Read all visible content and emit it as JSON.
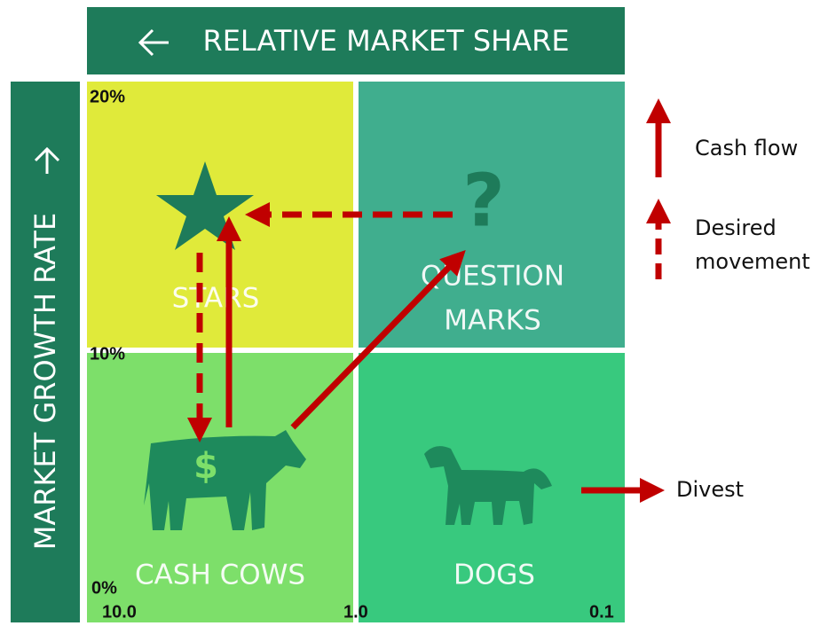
{
  "header": {
    "title": "RELATIVE MARKET SHARE"
  },
  "side": {
    "title": "MARKET GROWTH RATE"
  },
  "quadrants": {
    "stars": {
      "label": "STARS"
    },
    "question_marks": {
      "label_lines": [
        "QUESTION",
        "MARKS"
      ],
      "icon": "?"
    },
    "cash_cows": {
      "label": "CASH COWS",
      "icon": "$"
    },
    "dogs": {
      "label": "DOGS"
    }
  },
  "y_labels": [
    "20%",
    "10%",
    "0%"
  ],
  "x_labels": [
    "10.0",
    "1.0",
    "0.1"
  ],
  "legend": {
    "cash_flow": "Cash flow",
    "desired_movement_lines": [
      "Desired",
      "movement"
    ]
  },
  "divest": "Divest"
}
